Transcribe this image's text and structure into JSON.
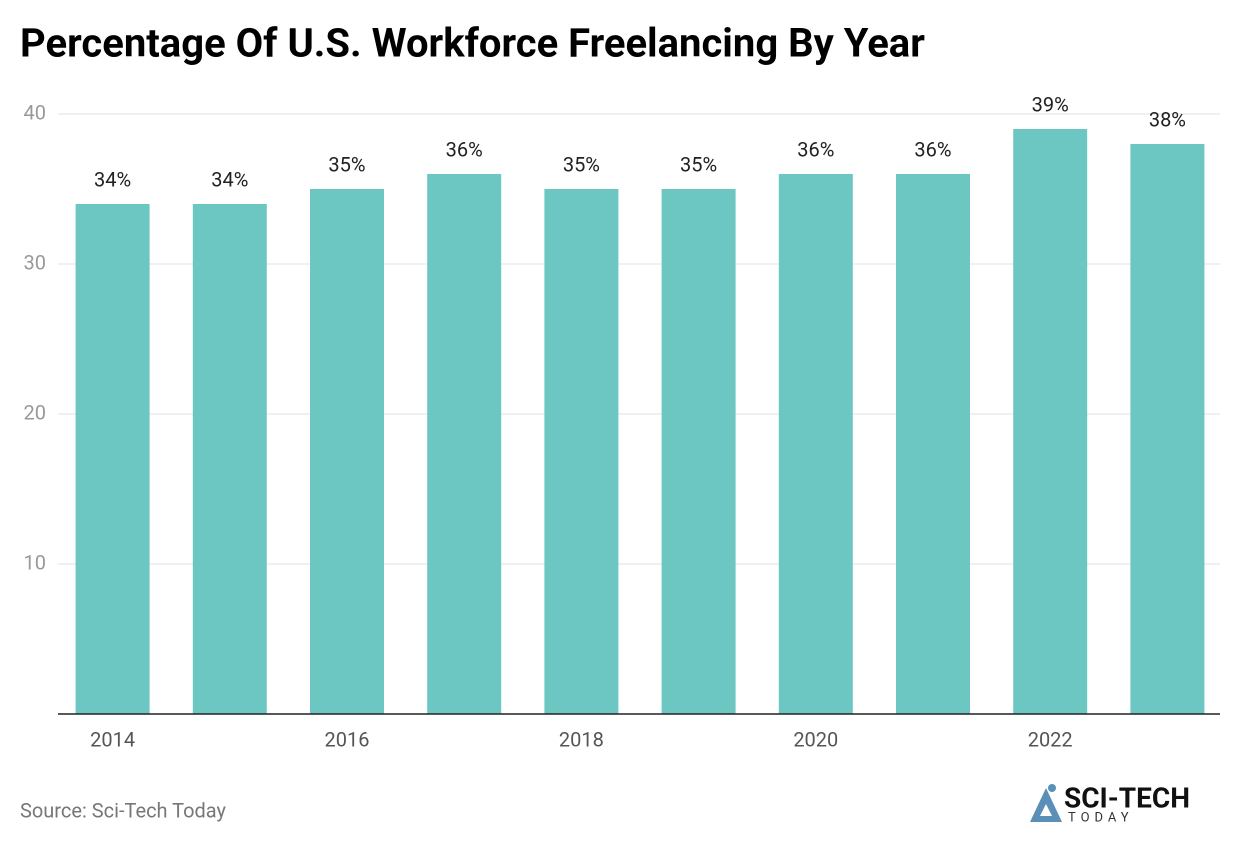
{
  "chart_data": {
    "type": "bar",
    "title": "Percentage Of U.S. Workforce Freelancing By Year",
    "categories": [
      "2014",
      null,
      "2016",
      null,
      "2018",
      null,
      "2020",
      null,
      "2022",
      null
    ],
    "values": [
      34,
      34,
      35,
      36,
      35,
      35,
      36,
      36,
      39,
      38
    ],
    "value_labels": [
      "34%",
      "34%",
      "35%",
      "36%",
      "35%",
      "35%",
      "36%",
      "36%",
      "39%",
      "38%"
    ],
    "color": "#6cc7c2",
    "ylim": [
      0,
      40
    ],
    "yticks": [
      10,
      20,
      30,
      40
    ],
    "grid": true,
    "source": "Source: Sci-Tech Today",
    "logo": {
      "line1": "SCI-TECH",
      "line2": "TODAY"
    }
  }
}
